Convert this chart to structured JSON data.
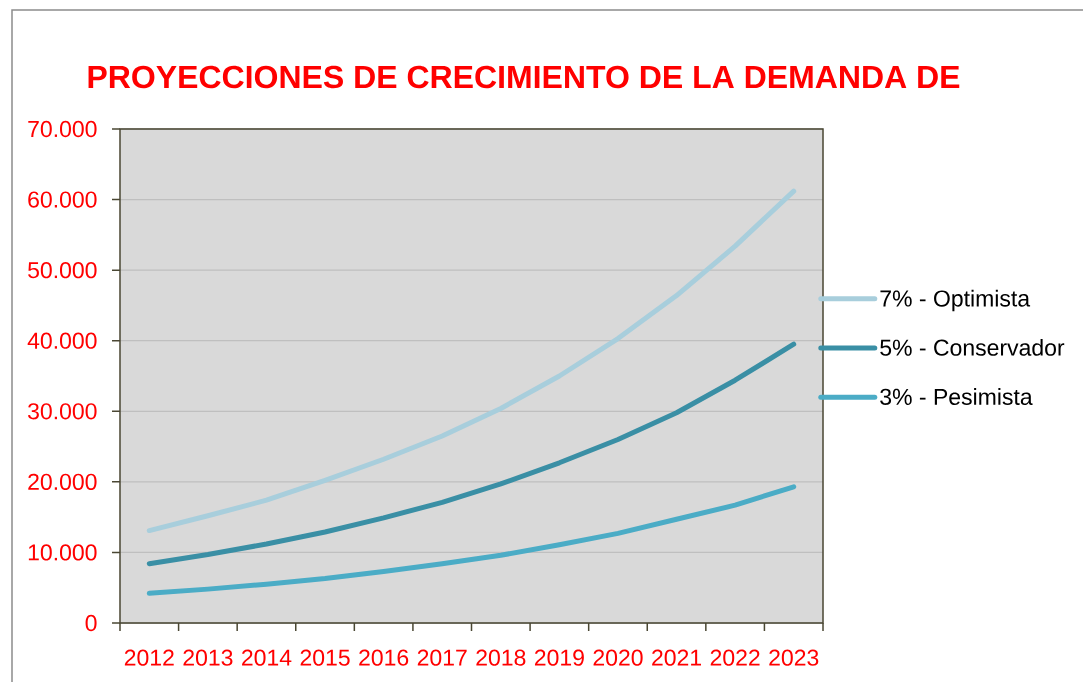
{
  "chart_data": {
    "type": "line",
    "title": "PROYECCIONES DE CRECIMIENTO DE LA DEMANDA DE",
    "categories": [
      "2012",
      "2013",
      "2014",
      "2015",
      "2016",
      "2017",
      "2018",
      "2019",
      "2020",
      "2021",
      "2022",
      "2023"
    ],
    "series": [
      {
        "name": "7% - Optimista",
        "color": "#a8cedc",
        "values": [
          13100,
          15200,
          17400,
          20200,
          23200,
          26500,
          30400,
          35000,
          40300,
          46400,
          53400,
          61200
        ]
      },
      {
        "name": "5% - Conservador",
        "color": "#3a8fa5",
        "values": [
          8400,
          9700,
          11200,
          12900,
          14900,
          17100,
          19700,
          22700,
          26000,
          29800,
          34400,
          39500
        ]
      },
      {
        "name": "3% - Pesimista",
        "color": "#4bacc6",
        "values": [
          4200,
          4800,
          5500,
          6300,
          7300,
          8400,
          9600,
          11100,
          12700,
          14700,
          16700,
          19300
        ]
      }
    ],
    "ylim": [
      0,
      70000
    ],
    "yticks": [
      0,
      {
        "value": 10000,
        "label": "10.000"
      },
      {
        "value": 20000,
        "label": "20.000"
      },
      {
        "value": 30000,
        "label": "30.000"
      },
      {
        "value": 40000,
        "label": "40.000"
      },
      {
        "value": 50000,
        "label": "50.000"
      },
      {
        "value": 60000,
        "label": "60.000"
      },
      {
        "value": 70000,
        "label": "70.000"
      }
    ],
    "grid": "y",
    "legend": "right",
    "marker": "none",
    "line_style": "solid"
  }
}
